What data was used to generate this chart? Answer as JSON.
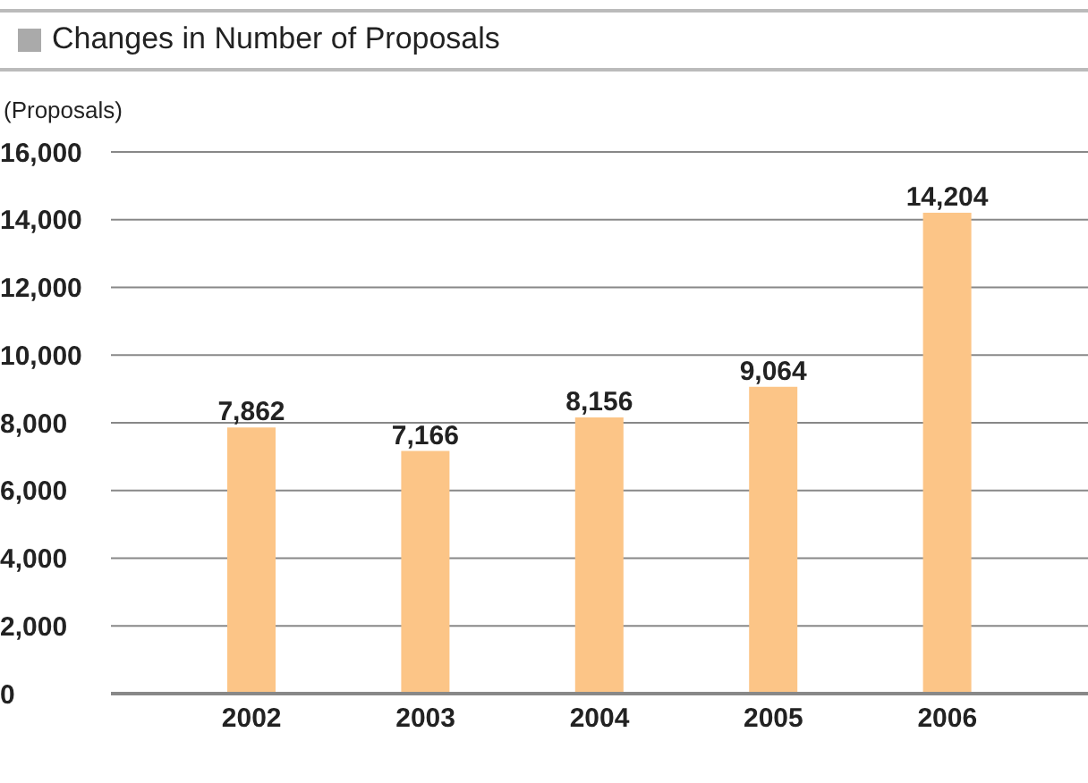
{
  "chart_data": {
    "type": "bar",
    "title": "Changes in Number of Proposals",
    "ylabel": "(Proposals)",
    "categories": [
      "2002",
      "2003",
      "2004",
      "2005",
      "2006"
    ],
    "values": [
      7862,
      7166,
      8156,
      9064,
      14204
    ],
    "color": "#fcc587",
    "ylim": [
      0,
      16000
    ],
    "yticks": [
      {
        "value": 0,
        "label": "0"
      },
      {
        "value": 2000,
        "label": "2,000"
      },
      {
        "value": 4000,
        "label": "4,000"
      },
      {
        "value": 6000,
        "label": "6,000"
      },
      {
        "value": 8000,
        "label": "8,000"
      },
      {
        "value": 10000,
        "label": "10,000"
      },
      {
        "value": 12000,
        "label": "12,000"
      },
      {
        "value": 14000,
        "label": "14,000"
      },
      {
        "value": 16000,
        "label": "16,000"
      }
    ],
    "grid": "y",
    "value_labels": [
      "7,862",
      "7,166",
      "8,156",
      "9,064",
      "14,204"
    ]
  }
}
